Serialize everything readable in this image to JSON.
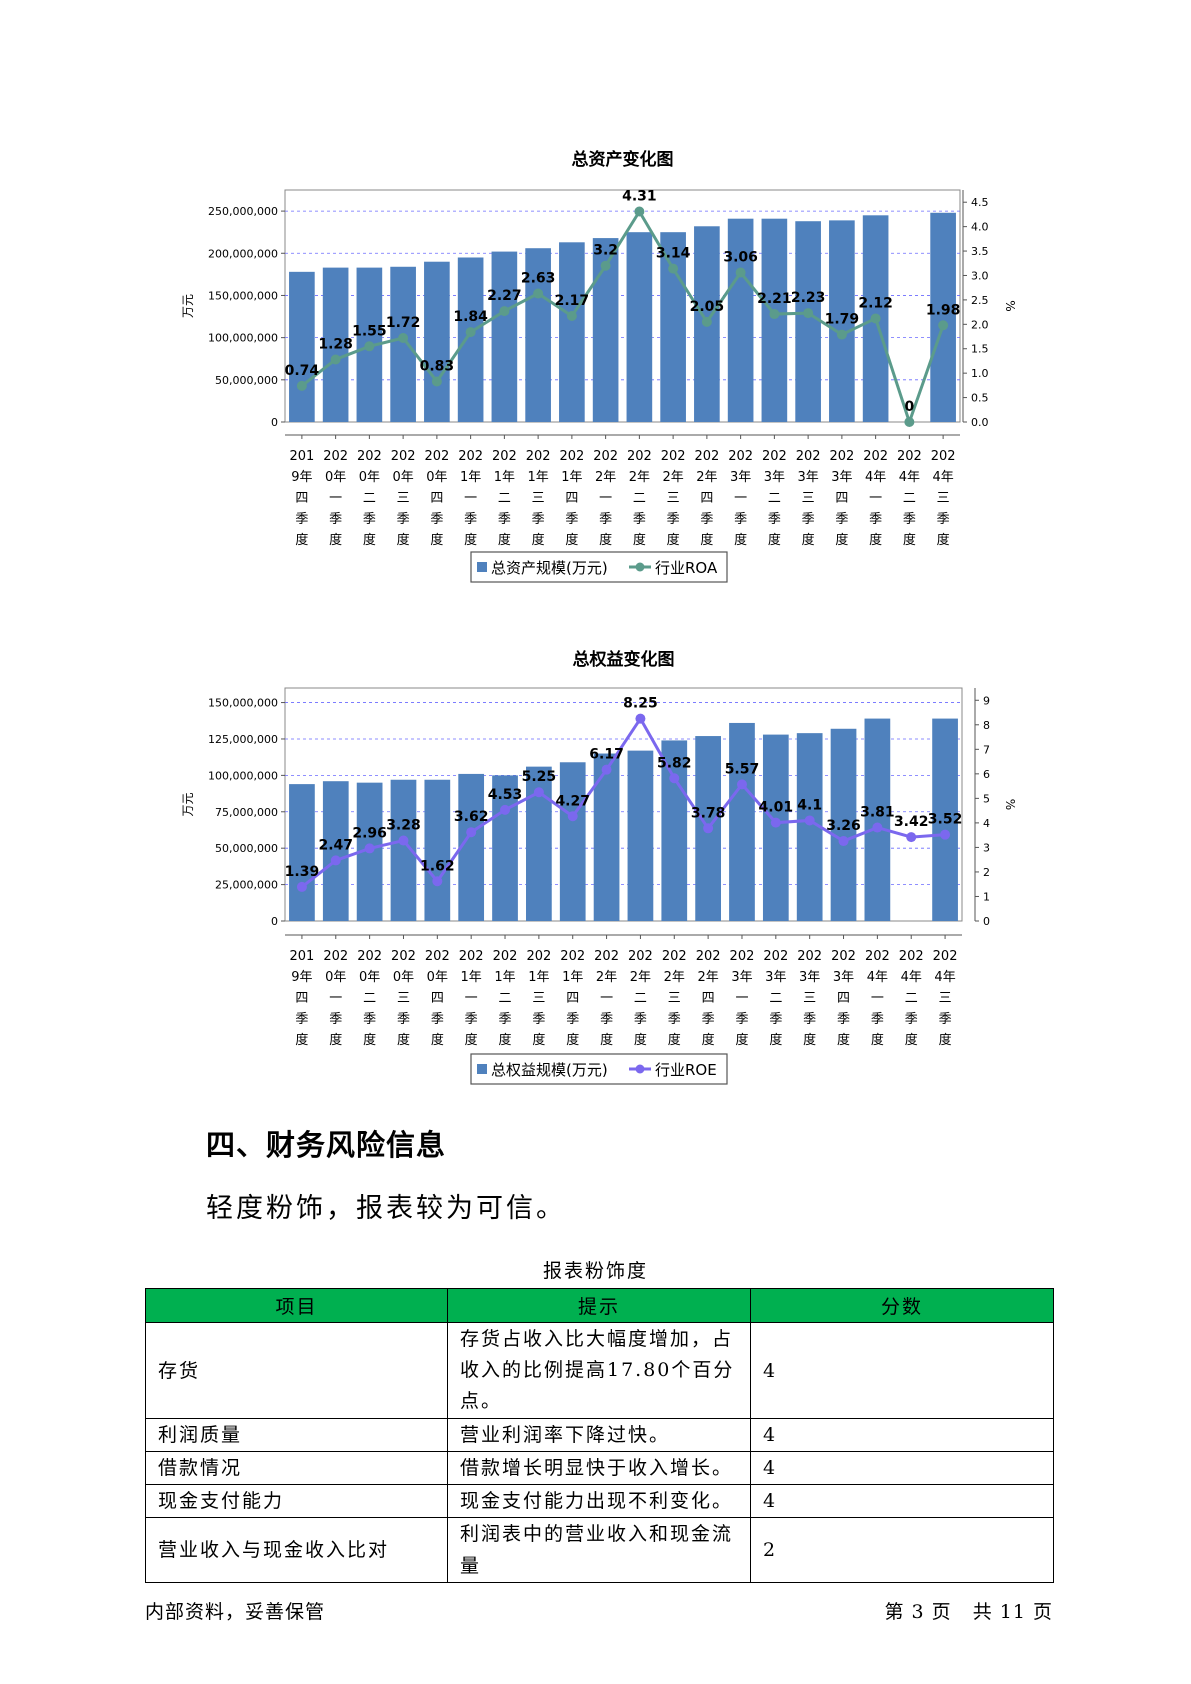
{
  "charts": {
    "assets": {
      "title": "总资产变化图",
      "left_unit": "万元",
      "right_unit": "%",
      "legend_bar": "总资产规模(万元)",
      "legend_line": "行业ROA"
    },
    "equity": {
      "title": "总权益变化图",
      "left_unit": "万元",
      "right_unit": "%",
      "legend_bar": "总权益规模(万元)",
      "legend_line": "行业ROE"
    }
  },
  "chart_data": [
    {
      "type": "bar",
      "title": "总资产变化图",
      "categories": [
        "2019年四季度",
        "2020年一季度",
        "2020年二季度",
        "2020年三季度",
        "2020年四季度",
        "2021年一季度",
        "2021年二季度",
        "2021年三季度",
        "2021年四季度",
        "2022年一季度",
        "2022年二季度",
        "2022年三季度",
        "2022年四季度",
        "2023年一季度",
        "2023年二季度",
        "2023年三季度",
        "2023年四季度",
        "2024年一季度",
        "2024年二季度",
        "2024年三季度"
      ],
      "category_lines": [
        [
          "201",
          "9年",
          "四",
          "季",
          "度"
        ],
        [
          "202",
          "0年",
          "一",
          "季",
          "度"
        ],
        [
          "202",
          "0年",
          "二",
          "季",
          "度"
        ],
        [
          "202",
          "0年",
          "三",
          "季",
          "度"
        ],
        [
          "202",
          "0年",
          "四",
          "季",
          "度"
        ],
        [
          "202",
          "1年",
          "一",
          "季",
          "度"
        ],
        [
          "202",
          "1年",
          "二",
          "季",
          "度"
        ],
        [
          "202",
          "1年",
          "三",
          "季",
          "度"
        ],
        [
          "202",
          "1年",
          "四",
          "季",
          "度"
        ],
        [
          "202",
          "2年",
          "一",
          "季",
          "度"
        ],
        [
          "202",
          "2年",
          "二",
          "季",
          "度"
        ],
        [
          "202",
          "2年",
          "三",
          "季",
          "度"
        ],
        [
          "202",
          "2年",
          "四",
          "季",
          "度"
        ],
        [
          "202",
          "3年",
          "一",
          "季",
          "度"
        ],
        [
          "202",
          "3年",
          "二",
          "季",
          "度"
        ],
        [
          "202",
          "3年",
          "三",
          "季",
          "度"
        ],
        [
          "202",
          "3年",
          "四",
          "季",
          "度"
        ],
        [
          "202",
          "4年",
          "一",
          "季",
          "度"
        ],
        [
          "202",
          "4年",
          "二",
          "季",
          "度"
        ],
        [
          "202",
          "4年",
          "三",
          "季",
          "度"
        ]
      ],
      "ylabel": "万元",
      "y2label": "%",
      "ylim": [
        0,
        275000000
      ],
      "y_ticks": [
        "0",
        "50,000,000",
        "100,000,000",
        "150,000,000",
        "200,000,000",
        "250,000,000"
      ],
      "y_tick_values": [
        0,
        50000000,
        100000000,
        150000000,
        200000000,
        250000000
      ],
      "y2lim": [
        0,
        4.75
      ],
      "y2_ticks": [
        "0.0",
        "0.5",
        "1.0",
        "1.5",
        "2.0",
        "2.5",
        "3.0",
        "3.5",
        "4.0",
        "4.5"
      ],
      "y2_tick_values": [
        0,
        0.5,
        1.0,
        1.5,
        2.0,
        2.5,
        3.0,
        3.5,
        4.0,
        4.5
      ],
      "grid": true,
      "legend_position": "bottom",
      "series": [
        {
          "name": "总资产规模(万元)",
          "kind": "bar",
          "color": "#4f81bd",
          "values": [
            178000000,
            183000000,
            183000000,
            184000000,
            190000000,
            195000000,
            202000000,
            206000000,
            213000000,
            218000000,
            225000000,
            225000000,
            232000000,
            241000000,
            241000000,
            238000000,
            239000000,
            245000000,
            null,
            248000000
          ]
        },
        {
          "name": "行业ROA",
          "kind": "line",
          "color": "#5b9b8b",
          "values": [
            0.74,
            1.28,
            1.55,
            1.72,
            0.83,
            1.84,
            2.27,
            2.63,
            2.17,
            3.2,
            4.31,
            3.14,
            2.05,
            3.06,
            2.21,
            2.23,
            1.79,
            2.12,
            0,
            1.98
          ],
          "labels": [
            "0.74",
            "1.28",
            "1.55",
            "1.72",
            "0.83",
            "1.84",
            "2.27",
            "2.63",
            "2.17",
            "3.2",
            "4.31",
            "3.14",
            "2.05",
            "3.06",
            "2.21",
            "2.23",
            "1.79",
            "2.12",
            "0",
            "1.98"
          ]
        }
      ]
    },
    {
      "type": "bar",
      "title": "总权益变化图",
      "categories": [
        "2019年四季度",
        "2020年一季度",
        "2020年二季度",
        "2020年三季度",
        "2020年四季度",
        "2021年一季度",
        "2021年二季度",
        "2021年三季度",
        "2021年四季度",
        "2022年一季度",
        "2022年二季度",
        "2022年三季度",
        "2022年四季度",
        "2023年一季度",
        "2023年二季度",
        "2023年三季度",
        "2023年四季度",
        "2024年一季度",
        "2024年二季度",
        "2024年三季度"
      ],
      "category_lines": [
        [
          "201",
          "9年",
          "四",
          "季",
          "度"
        ],
        [
          "202",
          "0年",
          "一",
          "季",
          "度"
        ],
        [
          "202",
          "0年",
          "二",
          "季",
          "度"
        ],
        [
          "202",
          "0年",
          "三",
          "季",
          "度"
        ],
        [
          "202",
          "0年",
          "四",
          "季",
          "度"
        ],
        [
          "202",
          "1年",
          "一",
          "季",
          "度"
        ],
        [
          "202",
          "1年",
          "二",
          "季",
          "度"
        ],
        [
          "202",
          "1年",
          "三",
          "季",
          "度"
        ],
        [
          "202",
          "1年",
          "四",
          "季",
          "度"
        ],
        [
          "202",
          "2年",
          "一",
          "季",
          "度"
        ],
        [
          "202",
          "2年",
          "二",
          "季",
          "度"
        ],
        [
          "202",
          "2年",
          "三",
          "季",
          "度"
        ],
        [
          "202",
          "2年",
          "四",
          "季",
          "度"
        ],
        [
          "202",
          "3年",
          "一",
          "季",
          "度"
        ],
        [
          "202",
          "3年",
          "二",
          "季",
          "度"
        ],
        [
          "202",
          "3年",
          "三",
          "季",
          "度"
        ],
        [
          "202",
          "3年",
          "四",
          "季",
          "度"
        ],
        [
          "202",
          "4年",
          "一",
          "季",
          "度"
        ],
        [
          "202",
          "4年",
          "二",
          "季",
          "度"
        ],
        [
          "202",
          "4年",
          "三",
          "季",
          "度"
        ]
      ],
      "ylabel": "万元",
      "y2label": "%",
      "ylim": [
        0,
        160000000
      ],
      "y_ticks": [
        "0",
        "25,000,000",
        "50,000,000",
        "75,000,000",
        "100,000,000",
        "125,000,000",
        "150,000,000"
      ],
      "y_tick_values": [
        0,
        25000000,
        50000000,
        75000000,
        100000000,
        125000000,
        150000000
      ],
      "y2lim": [
        0,
        9.5
      ],
      "y2_ticks": [
        "0",
        "1",
        "2",
        "3",
        "4",
        "5",
        "6",
        "7",
        "8",
        "9"
      ],
      "y2_tick_values": [
        0,
        1,
        2,
        3,
        4,
        5,
        6,
        7,
        8,
        9
      ],
      "grid": true,
      "legend_position": "bottom",
      "series": [
        {
          "name": "总权益规模(万元)",
          "kind": "bar",
          "color": "#4f81bd",
          "values": [
            94000000,
            96000000,
            95000000,
            97000000,
            97000000,
            101000000,
            100000000,
            106000000,
            109000000,
            115000000,
            117000000,
            124000000,
            127000000,
            136000000,
            128000000,
            129000000,
            132000000,
            139000000,
            null,
            139000000
          ]
        },
        {
          "name": "行业ROE",
          "kind": "line",
          "color": "#7b68ee",
          "values": [
            1.39,
            2.47,
            2.96,
            3.28,
            1.62,
            3.62,
            4.53,
            5.25,
            4.27,
            6.17,
            8.25,
            5.82,
            3.78,
            5.57,
            4.01,
            4.1,
            3.26,
            3.81,
            3.42,
            3.52
          ],
          "labels": [
            "1.39",
            "2.47",
            "2.96",
            "3.28",
            "1.62",
            "3.62",
            "4.53",
            "5.25",
            "4.27",
            "6.17",
            "8.25",
            "5.82",
            "3.78",
            "5.57",
            "4.01",
            "4.1",
            "3.26",
            "3.81",
            "3.42",
            "3.52"
          ]
        }
      ]
    }
  ],
  "section": {
    "title": "四、财务风险信息",
    "summary": "轻度粉饰，报表较为可信。"
  },
  "table": {
    "caption": "报表粉饰度",
    "headers": [
      "项目",
      "提示",
      "分数"
    ],
    "rows": [
      {
        "item": "存货",
        "hint": "存货占收入比大幅度增加，占收入的比例提高17.80个百分点。",
        "score": "4"
      },
      {
        "item": "利润质量",
        "hint": "营业利润率下降过快。",
        "score": "4"
      },
      {
        "item": "借款情况",
        "hint": "借款增长明显快于收入增长。",
        "score": "4"
      },
      {
        "item": "现金支付能力",
        "hint": "现金支付能力出现不利变化。",
        "score": "4"
      },
      {
        "item": "营业收入与现金收入比对",
        "hint": "利润表中的营业收入和现金流量",
        "score": "2"
      }
    ]
  },
  "footer": {
    "left": "内部资料，妥善保管",
    "right": "第 3 页   共 11 页"
  }
}
